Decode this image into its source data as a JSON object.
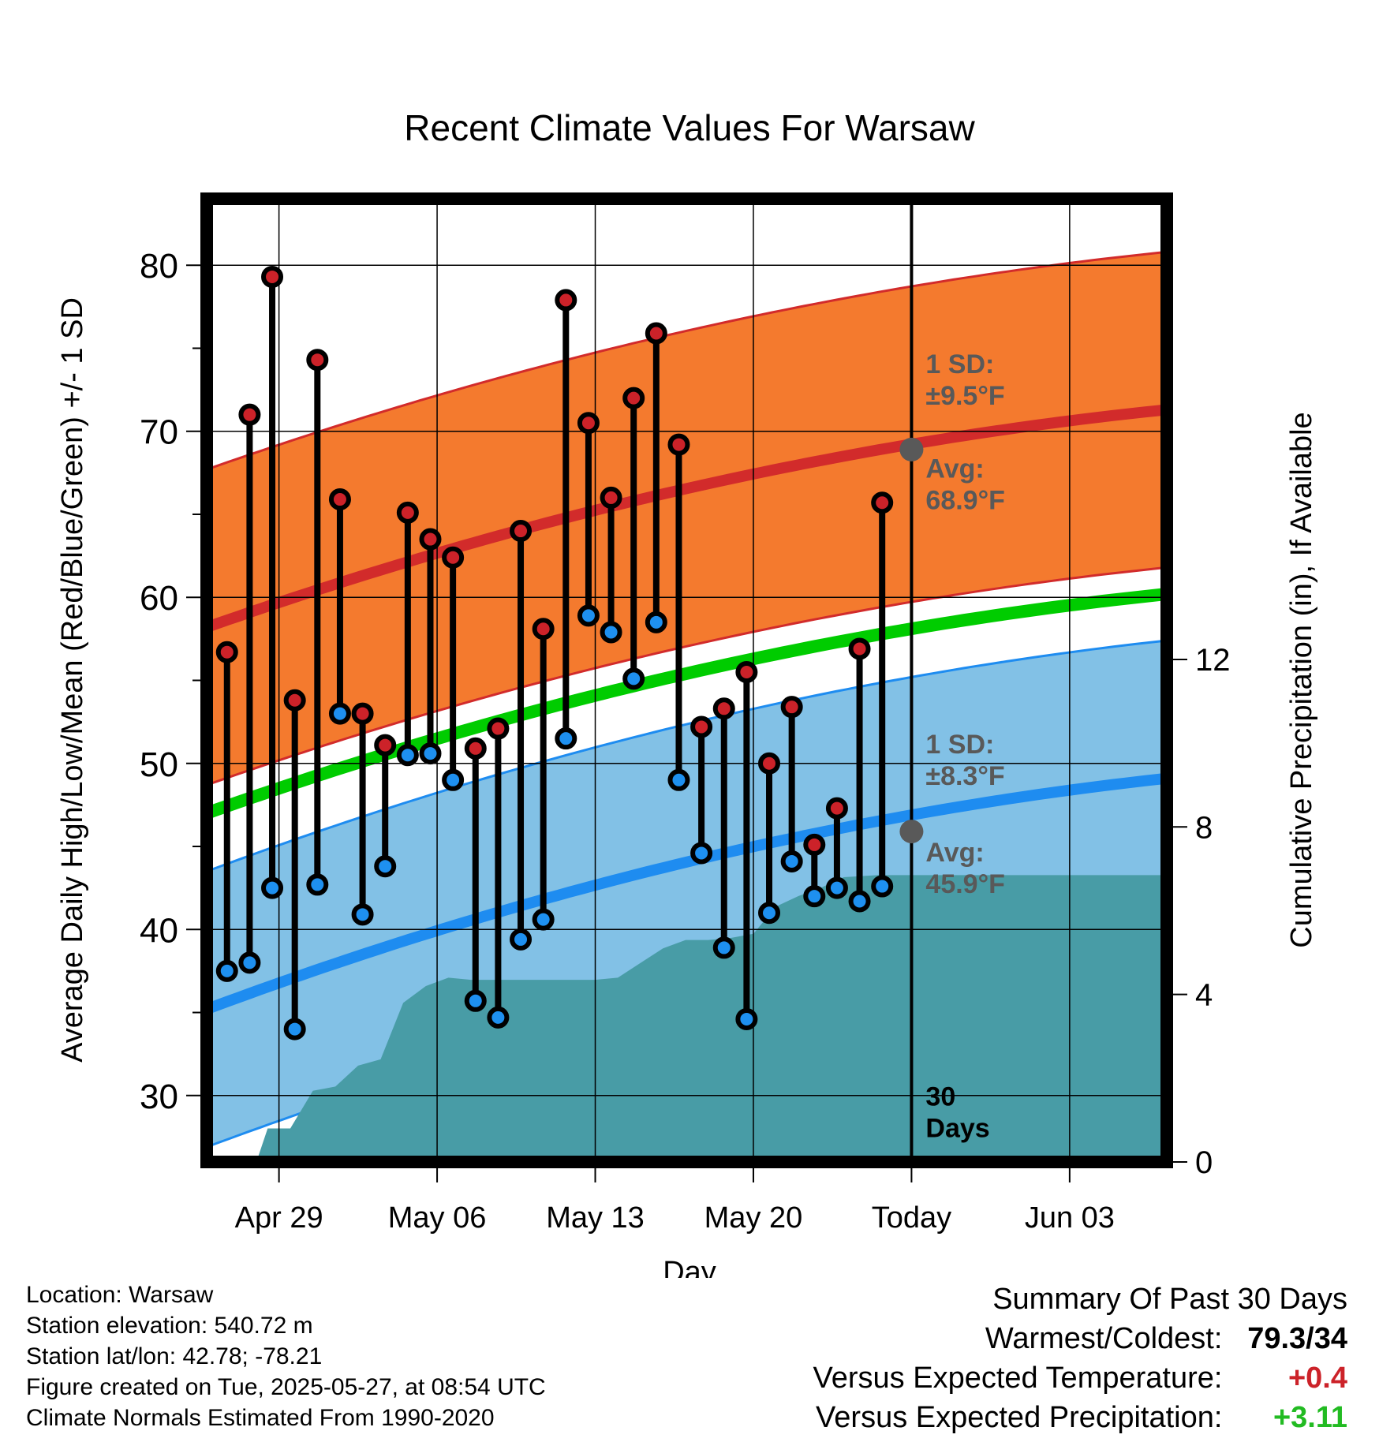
{
  "chart_data": {
    "type": "climate-summary",
    "title": "Recent Climate Values For Warsaw",
    "xlabel": "Day",
    "ylabel": "Average Daily High/Low/Mean (Red/Blue/Green) +/- 1 SD",
    "y2label": "Cumulative Precipitation (in), If Available",
    "ylim": [
      26,
      84
    ],
    "y2lim": [
      0,
      23
    ],
    "xlim": [
      -0.2,
      42.3
    ],
    "x_ticks": [
      {
        "x": 3,
        "label": "Apr 29"
      },
      {
        "x": 10,
        "label": "May 06"
      },
      {
        "x": 17,
        "label": "May 13"
      },
      {
        "x": 24,
        "label": "May 20"
      },
      {
        "x": 31,
        "label": "Today"
      },
      {
        "x": 38,
        "label": "Jun 03"
      }
    ],
    "y_ticks": [
      30,
      40,
      50,
      60,
      70,
      80
    ],
    "y2_ticks": [
      0,
      4,
      8,
      12
    ],
    "grid": true,
    "today_x": 31,
    "today_label": "30\nDays",
    "normals": {
      "high_mean_start": 58.2,
      "high_mean_end": 71.3,
      "high_sd": 9.5,
      "low_mean_start": 35.2,
      "low_mean_end": 49.1,
      "low_sd": 8.3,
      "mean_start": 47,
      "mean_end": 60.2
    },
    "high_sd_label": "1 SD:\n±9.5°F",
    "high_avg_label": "Avg:\n68.9°F",
    "low_sd_label": "1 SD:\n±8.3°F",
    "low_avg_label": "Avg:\n45.9°F",
    "today_high_avg": 68.9,
    "today_low_avg": 45.9,
    "days": [
      {
        "x": 0.7,
        "high": 56.7,
        "low": 37.5
      },
      {
        "x": 1.7,
        "high": 71.0,
        "low": 38.0
      },
      {
        "x": 2.7,
        "high": 79.3,
        "low": 42.5
      },
      {
        "x": 3.7,
        "high": 53.8,
        "low": 34.0
      },
      {
        "x": 4.7,
        "high": 74.3,
        "low": 42.7
      },
      {
        "x": 5.7,
        "high": 65.9,
        "low": 53.0
      },
      {
        "x": 6.7,
        "high": 53.0,
        "low": 40.9
      },
      {
        "x": 7.7,
        "high": 51.1,
        "low": 43.8
      },
      {
        "x": 8.7,
        "high": 65.1,
        "low": 50.5
      },
      {
        "x": 9.7,
        "high": 63.5,
        "low": 50.6
      },
      {
        "x": 10.7,
        "high": 62.4,
        "low": 49.0
      },
      {
        "x": 11.7,
        "high": 50.9,
        "low": 35.7
      },
      {
        "x": 12.7,
        "high": 52.1,
        "low": 34.7
      },
      {
        "x": 13.7,
        "high": 64.0,
        "low": 39.4
      },
      {
        "x": 14.7,
        "high": 58.1,
        "low": 40.6
      },
      {
        "x": 15.7,
        "high": 77.9,
        "low": 51.5
      },
      {
        "x": 16.7,
        "high": 70.5,
        "low": 58.9
      },
      {
        "x": 17.7,
        "high": 66.0,
        "low": 57.9
      },
      {
        "x": 18.7,
        "high": 72.0,
        "low": 55.1
      },
      {
        "x": 19.7,
        "high": 75.9,
        "low": 58.5
      },
      {
        "x": 20.7,
        "high": 69.2,
        "low": 49.0
      },
      {
        "x": 21.7,
        "high": 52.2,
        "low": 44.6
      },
      {
        "x": 22.7,
        "high": 53.3,
        "low": 38.9
      },
      {
        "x": 23.7,
        "high": 55.5,
        "low": 34.6
      },
      {
        "x": 24.7,
        "high": 50.0,
        "low": 41.0
      },
      {
        "x": 25.7,
        "high": 53.4,
        "low": 44.1
      },
      {
        "x": 26.7,
        "high": 45.1,
        "low": 42.0
      },
      {
        "x": 27.7,
        "high": 47.3,
        "low": 42.5
      },
      {
        "x": 28.7,
        "high": 56.9,
        "low": 41.7
      },
      {
        "x": 29.7,
        "high": 65.7,
        "low": 42.6
      }
    ],
    "precip": [
      [
        2,
        0
      ],
      [
        2.5,
        0.8
      ],
      [
        3.5,
        0.8
      ],
      [
        4.5,
        1.7
      ],
      [
        5,
        1.75
      ],
      [
        5.5,
        1.8
      ],
      [
        6.5,
        2.3
      ],
      [
        7.5,
        2.45
      ],
      [
        8.5,
        3.8
      ],
      [
        9.5,
        4.2
      ],
      [
        10.5,
        4.4
      ],
      [
        11.5,
        4.35
      ],
      [
        12.5,
        4.35
      ],
      [
        14.5,
        4.35
      ],
      [
        17,
        4.35
      ],
      [
        18,
        4.4
      ],
      [
        19,
        4.75
      ],
      [
        20,
        5.1
      ],
      [
        21,
        5.3
      ],
      [
        22,
        5.3
      ],
      [
        23,
        5.35
      ],
      [
        24,
        5.45
      ],
      [
        25,
        6.1
      ],
      [
        26,
        6.35
      ],
      [
        27,
        6.55
      ],
      [
        28,
        6.8
      ],
      [
        29.5,
        6.85
      ],
      [
        42.3,
        6.85
      ]
    ],
    "colors": {
      "high_band": "#f47a2e",
      "high_line": "#d22b2b",
      "low_band": "#82c1e6",
      "low_line": "#1e8cf0",
      "mean_line": "#00cc00",
      "precip": "#489ca6",
      "high_dot": "#cc2229",
      "low_dot": "#1e90f0",
      "label_gray": "#595959"
    }
  },
  "footer": {
    "location": "Location: Warsaw",
    "elevation": "Station elevation: 540.72 m",
    "latlon": "Station lat/lon: 42.78; -78.21",
    "created": "Figure created on Tue, 2025-05-27, at 08:54 UTC",
    "normals": "Climate Normals Estimated From 1990-2020"
  },
  "summary": {
    "heading": "Summary Of Past 30 Days",
    "warm_cold_label": "Warmest/Coldest:",
    "warm_cold_value": "79.3/34",
    "temp_label": "Versus Expected Temperature:",
    "temp_value": "+0.4",
    "temp_color": "#cc2229",
    "precip_label": "Versus Expected Precipitation:",
    "precip_value": "+3.11",
    "precip_color": "#22bb22"
  }
}
